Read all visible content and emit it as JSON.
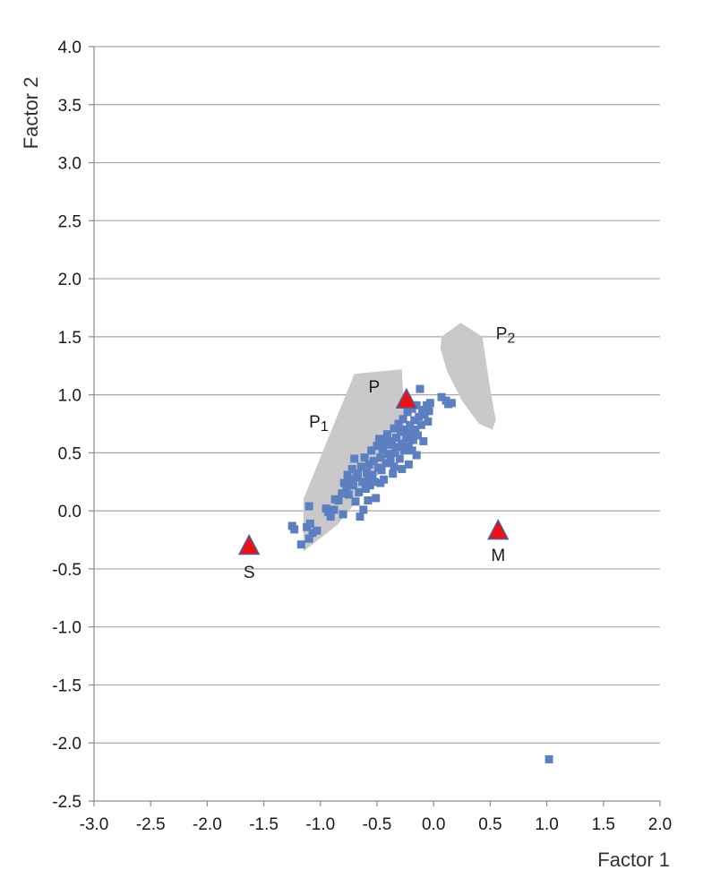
{
  "chart_data": {
    "type": "scatter",
    "xlabel": "Factor 1",
    "ylabel": "Factor 2",
    "xlim": [
      -3.0,
      2.0
    ],
    "ylim": [
      -2.5,
      4.0
    ],
    "x_ticks": [
      "-3.0",
      "-2.5",
      "-2.0",
      "-1.5",
      "-1.0",
      "-0.5",
      "0.0",
      "0.5",
      "1.0",
      "1.5",
      "2.0"
    ],
    "y_ticks": [
      "4.0",
      "3.5",
      "3.0",
      "2.5",
      "2.0",
      "1.5",
      "1.0",
      "0.5",
      "0.0",
      "-0.5",
      "-1.0",
      "-1.5",
      "-2.0",
      "-2.5"
    ],
    "grid": "horizontal",
    "colors": {
      "points": "#5b7fc0",
      "regions": "#c9c9c9",
      "endmembers": "#ee1111",
      "endmember_outline": "#4a5fa8"
    },
    "series": [
      {
        "marker": "square",
        "points": [
          [
            -1.25,
            -0.13
          ],
          [
            -1.23,
            -0.16
          ],
          [
            -1.17,
            -0.29
          ],
          [
            -1.12,
            -0.14
          ],
          [
            -1.09,
            -0.11
          ],
          [
            -1.1,
            -0.24
          ],
          [
            -1.07,
            -0.19
          ],
          [
            -1.1,
            0.04
          ],
          [
            -1.03,
            -0.17
          ],
          [
            -0.93,
            -0.01
          ],
          [
            -0.91,
            -0.05
          ],
          [
            -0.88,
            0.01
          ],
          [
            -0.87,
            0.1
          ],
          [
            -0.84,
            0.09
          ],
          [
            -0.81,
            0.15
          ],
          [
            -0.79,
            0.24
          ],
          [
            -0.77,
            0.2
          ],
          [
            -0.76,
            0.31
          ],
          [
            -0.75,
            0.14
          ],
          [
            -0.74,
            0.27
          ],
          [
            -0.72,
            0.36
          ],
          [
            -0.71,
            0.22
          ],
          [
            -0.7,
            0.45
          ],
          [
            -0.69,
            0.08
          ],
          [
            -0.68,
            0.29
          ],
          [
            -0.67,
            0.32
          ],
          [
            -0.66,
            0.16
          ],
          [
            -0.65,
            -0.05
          ],
          [
            -0.64,
            0.38
          ],
          [
            -0.63,
            0.25
          ],
          [
            -0.62,
            0.01
          ],
          [
            -0.61,
            0.46
          ],
          [
            -0.6,
            0.19
          ],
          [
            -0.59,
            0.33
          ],
          [
            -0.58,
            0.28
          ],
          [
            -0.57,
            0.4
          ],
          [
            -0.56,
            0.22
          ],
          [
            -0.55,
            0.52
          ],
          [
            -0.54,
            0.31
          ],
          [
            -0.53,
            0.43
          ],
          [
            -0.52,
            0.25
          ],
          [
            -0.51,
            0.11
          ],
          [
            -0.5,
            0.56
          ],
          [
            -0.49,
            0.37
          ],
          [
            -0.48,
            0.62
          ],
          [
            -0.47,
            0.46
          ],
          [
            -0.46,
            0.35
          ],
          [
            -0.45,
            0.53
          ],
          [
            -0.44,
            0.27
          ],
          [
            -0.43,
            0.59
          ],
          [
            -0.42,
            0.41
          ],
          [
            -0.41,
            0.66
          ],
          [
            -0.4,
            0.49
          ],
          [
            -0.39,
            0.57
          ],
          [
            -0.38,
            0.44
          ],
          [
            -0.37,
            0.6
          ],
          [
            -0.36,
            0.32
          ],
          [
            -0.35,
            0.71
          ],
          [
            -0.34,
            0.5
          ],
          [
            -0.33,
            0.63
          ],
          [
            -0.32,
            0.55
          ],
          [
            -0.31,
            0.75
          ],
          [
            -0.3,
            0.45
          ],
          [
            -0.29,
            0.68
          ],
          [
            -0.28,
            0.58
          ],
          [
            -0.27,
            0.79
          ],
          [
            -0.26,
            0.52
          ],
          [
            -0.25,
            0.7
          ],
          [
            -0.24,
            0.63
          ],
          [
            -0.23,
            0.85
          ],
          [
            -0.22,
            0.56
          ],
          [
            -0.21,
            0.74
          ],
          [
            -0.2,
            0.67
          ],
          [
            -0.19,
            0.88
          ],
          [
            -0.18,
            0.61
          ],
          [
            -0.17,
            0.78
          ],
          [
            -0.16,
            0.7
          ],
          [
            -0.15,
            0.91
          ],
          [
            -0.14,
            0.65
          ],
          [
            -0.13,
            0.81
          ],
          [
            -0.12,
            1.05
          ],
          [
            -0.11,
            0.74
          ],
          [
            -0.1,
            0.87
          ],
          [
            -0.09,
            0.6
          ],
          [
            -0.08,
            0.83
          ],
          [
            -0.06,
            0.91
          ],
          [
            -0.05,
            0.77
          ],
          [
            -0.04,
            0.86
          ],
          [
            -0.03,
            0.93
          ],
          [
            -0.22,
            0.4
          ],
          [
            -0.15,
            0.48
          ],
          [
            -0.28,
            0.36
          ],
          [
            -0.19,
            0.52
          ],
          [
            -0.35,
            0.38
          ],
          [
            -0.47,
            0.24
          ],
          [
            -0.58,
            0.09
          ],
          [
            -0.8,
            -0.03
          ],
          [
            -0.95,
            0.02
          ],
          [
            0.07,
            0.98
          ],
          [
            0.11,
            0.95
          ],
          [
            0.13,
            0.92
          ],
          [
            0.16,
            0.93
          ],
          [
            1.02,
            -2.14
          ]
        ]
      }
    ],
    "regions": [
      {
        "label": "P1",
        "polygon": [
          [
            -1.15,
            -0.35
          ],
          [
            -0.85,
            -0.12
          ],
          [
            -0.25,
            0.6
          ],
          [
            -0.28,
            1.22
          ],
          [
            -0.7,
            1.18
          ],
          [
            -1.15,
            0.1
          ]
        ]
      },
      {
        "label": "P2",
        "polygon": [
          [
            0.07,
            1.5
          ],
          [
            0.24,
            1.62
          ],
          [
            0.43,
            1.5
          ],
          [
            0.5,
            1.05
          ],
          [
            0.55,
            0.78
          ],
          [
            0.52,
            0.7
          ],
          [
            0.4,
            0.75
          ],
          [
            0.25,
            0.95
          ],
          [
            0.12,
            1.2
          ],
          [
            0.06,
            1.4
          ]
        ]
      }
    ],
    "endmembers": [
      {
        "label": "P",
        "x": -0.24,
        "y": 0.96
      },
      {
        "label": "S",
        "x": -1.63,
        "y": -0.3
      },
      {
        "label": "M",
        "x": 0.57,
        "y": -0.17
      }
    ],
    "region_labels": [
      {
        "text": "P",
        "sub": "1",
        "x": -1.1,
        "y": 0.72
      },
      {
        "text": "P",
        "sub": "2",
        "x": 0.55,
        "y": 1.48
      }
    ]
  }
}
